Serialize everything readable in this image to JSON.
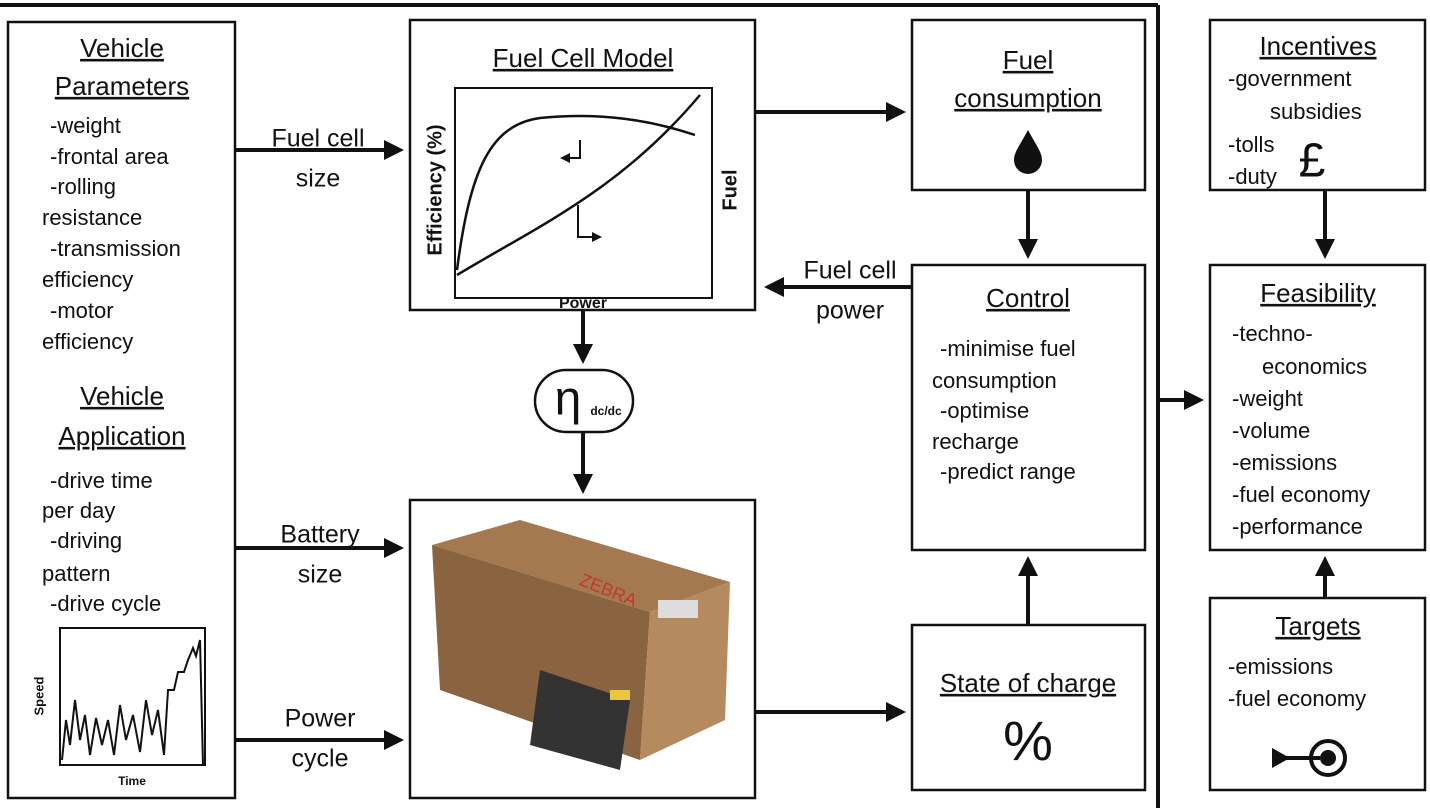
{
  "vehicle_parameters": {
    "title": [
      "Vehicle",
      "Parameters"
    ],
    "items": [
      "-weight",
      "-frontal area",
      "-rolling",
      "resistance",
      "-transmission",
      "efficiency",
      "-motor",
      "efficiency"
    ]
  },
  "vehicle_application": {
    "title": [
      "Vehicle",
      "Application"
    ],
    "items": [
      "-drive time",
      "per day",
      "-driving",
      "pattern",
      "-drive cycle"
    ]
  },
  "speed_plot": {
    "y_label": "Speed",
    "x_label": "Time"
  },
  "fuel_cell_model": {
    "title": "Fuel Cell Model",
    "y_label": "Efficiency (%)",
    "y2_label": "Fuel",
    "x_label": "Power"
  },
  "fuel_consumption": {
    "title": [
      "Fuel",
      "consumption"
    ]
  },
  "control": {
    "title": "Control",
    "items": [
      "-minimise fuel",
      "consumption",
      "-optimise",
      "recharge",
      "-predict range"
    ]
  },
  "state_of_charge": {
    "title": "State of charge",
    "symbol": "%"
  },
  "converter": {
    "symbol": "η",
    "subscript": "dc/dc"
  },
  "battery": {
    "brand": "ZEBRA"
  },
  "incentives": {
    "title": "Incentives",
    "items": [
      "-government",
      "subsidies",
      "-tolls",
      "-duty"
    ],
    "symbol": "£"
  },
  "feasibility": {
    "title": "Feasibility",
    "items": [
      "-techno-",
      "economics",
      "-weight",
      "-volume",
      "-emissions",
      "-fuel economy",
      "-performance"
    ]
  },
  "targets": {
    "title": "Targets",
    "items": [
      "-emissions",
      "-fuel economy"
    ]
  },
  "connectors": {
    "fuel_cell_size": [
      "Fuel cell",
      "size"
    ],
    "fuel_cell_power": [
      "Fuel cell",
      "power"
    ],
    "battery_size": [
      "Battery",
      "size"
    ],
    "power_cycle": [
      "Power",
      "cycle"
    ]
  }
}
